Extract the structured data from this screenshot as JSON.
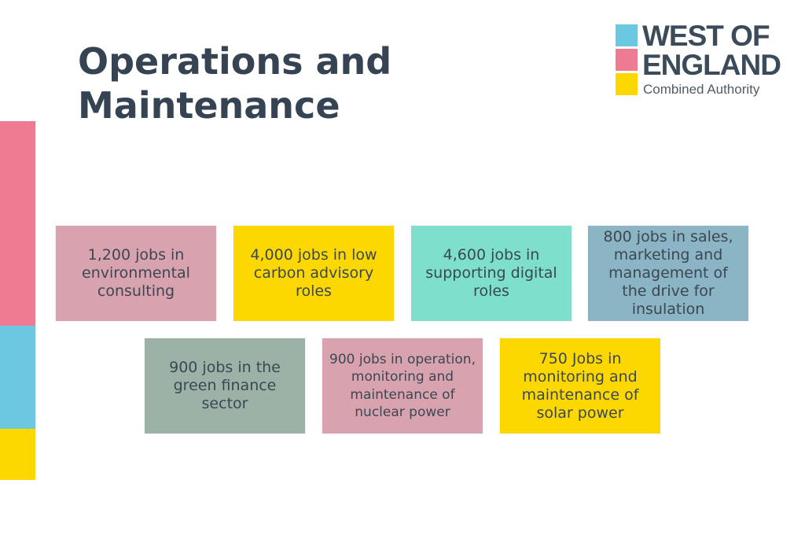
{
  "title": {
    "line1": "Operations and",
    "line2": "Maintenance"
  },
  "logo": {
    "line1": "WEST OF",
    "line2": "ENGLAND",
    "subtitle": "Combined Authority",
    "colors": [
      "#6cc8e0",
      "#ee7b92",
      "#fdd800"
    ]
  },
  "colors": {
    "title": "#354353",
    "side_pink": "#ee7b92",
    "side_blue": "#6cc8e0",
    "side_yellow": "#fdd800"
  },
  "boxes": [
    {
      "text": "1,200 jobs in environmental consulting",
      "color": "#d8a3ae"
    },
    {
      "text": "4,000 jobs in low carbon advisory roles",
      "color": "#fdd800"
    },
    {
      "text": "4,600 jobs in supporting digital roles",
      "color": "#7ddfcc"
    },
    {
      "text": "800 jobs in sales, marketing and management of the drive for insulation",
      "color": "#8bb4c4"
    },
    {
      "text": "900 jobs in the green finance sector",
      "color": "#9db2a7"
    },
    {
      "text": "900 jobs in operation, monitoring and maintenance of nuclear power",
      "color": "#d8a3ae"
    },
    {
      "text": "750 Jobs in monitoring and maintenance of solar power",
      "color": "#fdd800"
    }
  ]
}
